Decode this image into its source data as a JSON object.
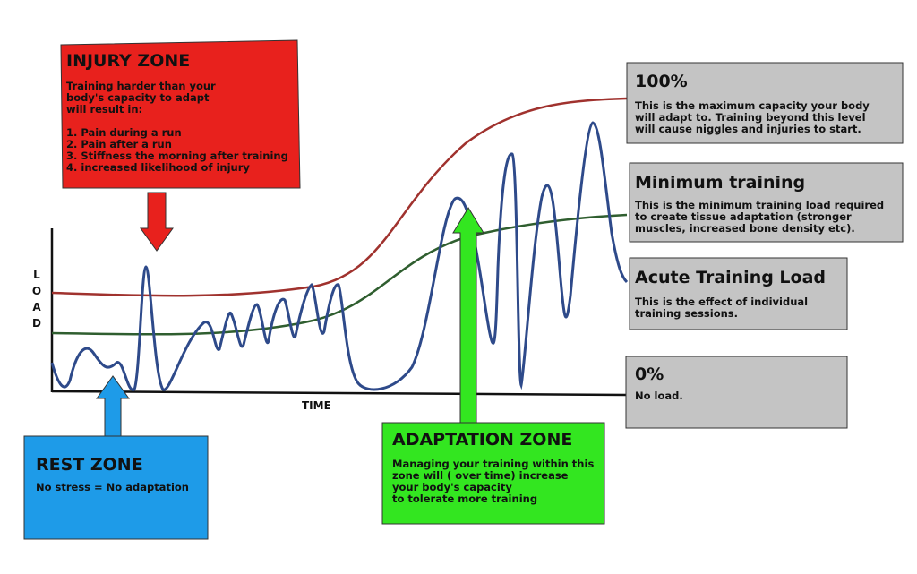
{
  "axes": {
    "y_label": "LOAD",
    "x_label": "TIME"
  },
  "injury_zone": {
    "title": "INJURY ZONE",
    "intro": [
      "Training harder than your",
      "body's capacity to adapt",
      "will result in:"
    ],
    "items": [
      "1. Pain during a run",
      "2. Pain after a run",
      "3. Stiffness the morning after training",
      "4. increased likelihood of injury"
    ]
  },
  "rest_zone": {
    "title": "REST ZONE",
    "lines": [
      "No stress = No adaptation"
    ]
  },
  "adaptation_zone": {
    "title": "ADAPTATION ZONE",
    "lines": [
      "Managing your training within this",
      "zone will ( over time) increase",
      "your body's capacity",
      "to tolerate more training"
    ]
  },
  "levels": [
    {
      "title": "100%",
      "lines": [
        "This is the maximum capacity your body",
        "will adapt to. Training beyond this level",
        "will cause niggles and injuries to start."
      ]
    },
    {
      "title": "Minimum training",
      "lines": [
        "This is the minimum training load required",
        "to create tissue adaptation (stronger",
        "muscles, increased bone density etc)."
      ]
    },
    {
      "title": "Acute Training Load",
      "lines": [
        "This is the effect of individual",
        "training sessions."
      ]
    },
    {
      "title": "0%",
      "lines": [
        "No load."
      ]
    }
  ]
}
